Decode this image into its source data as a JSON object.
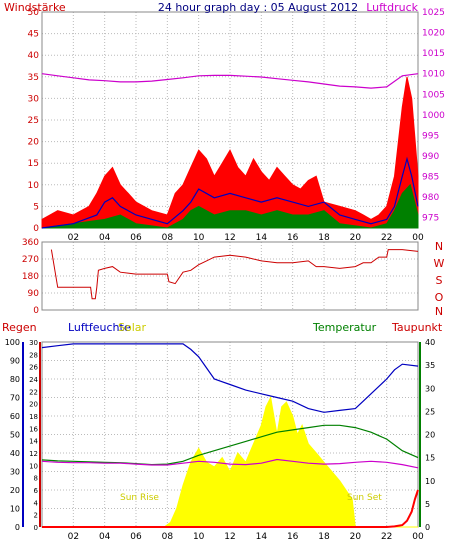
{
  "chart_data": [
    {
      "type": "line",
      "title": "24 hour graph day : 05 August 2012",
      "left_axis_label": "Windstärke",
      "right_axis_label": "Luftdruck",
      "x_ticks": [
        "02",
        "04",
        "06",
        "08",
        "10",
        "12",
        "14",
        "16",
        "18",
        "20",
        "22",
        "00"
      ],
      "x_range": [
        0,
        24
      ],
      "ylim_left": [
        0,
        50
      ],
      "yticks_left": [
        0,
        5,
        10,
        15,
        20,
        25,
        30,
        35,
        40,
        45,
        50
      ],
      "ylim_right": [
        972.5,
        1025
      ],
      "yticks_right": [
        975,
        980,
        985,
        990,
        995,
        1000,
        1005,
        1010,
        1015,
        1020,
        1025
      ],
      "colors": {
        "gust": "#ff0000",
        "wind": "#0000c0",
        "wind_avg": "#008000",
        "pressure": "#cc00cc",
        "left_axis": "#cc0000",
        "right_axis": "#cc00cc",
        "title": "#000080"
      },
      "series": [
        {
          "key": "pressure",
          "axis": "right",
          "x": [
            0,
            1,
            2,
            3,
            4,
            5,
            6,
            7,
            8,
            9,
            10,
            11,
            12,
            13,
            14,
            15,
            16,
            17,
            18,
            19,
            20,
            21,
            22,
            23,
            24
          ],
          "y": [
            1010,
            1009.5,
            1009,
            1008.5,
            1008.3,
            1008,
            1008,
            1008.2,
            1008.6,
            1009,
            1009.5,
            1009.6,
            1009.6,
            1009.4,
            1009.2,
            1008.8,
            1008.4,
            1008,
            1007.5,
            1007,
            1006.8,
            1006.5,
            1006.8,
            1009.5,
            1010
          ]
        },
        {
          "key": "gust",
          "axis": "left",
          "x": [
            0,
            1,
            2,
            3,
            3.5,
            4,
            4.5,
            5,
            5.5,
            6,
            7,
            8,
            8.5,
            9,
            9.5,
            10,
            10.5,
            11,
            11.5,
            12,
            12.5,
            13,
            13.5,
            14,
            14.5,
            15,
            15.5,
            16,
            16.5,
            17,
            17.5,
            18,
            19,
            20,
            20.5,
            21,
            21.5,
            22,
            22.5,
            23,
            23.3,
            23.6,
            24
          ],
          "y": [
            2,
            4,
            3,
            5,
            8,
            12,
            14,
            10,
            8,
            6,
            4,
            3,
            8,
            10,
            14,
            18,
            16,
            12,
            15,
            18,
            14,
            12,
            16,
            13,
            11,
            14,
            12,
            10,
            9,
            11,
            12,
            6,
            5,
            4,
            3,
            2,
            3,
            5,
            12,
            28,
            35,
            30,
            12
          ]
        },
        {
          "key": "wind",
          "axis": "left",
          "x": [
            0,
            2,
            3.5,
            4,
            4.5,
            5,
            6,
            8,
            9,
            9.5,
            10,
            11,
            12,
            13,
            14,
            15,
            16,
            17,
            18,
            19,
            20,
            21,
            22,
            22.5,
            23,
            23.3,
            23.6,
            24
          ],
          "y": [
            0,
            1,
            3,
            6,
            7,
            5,
            3,
            1,
            4,
            6,
            9,
            7,
            8,
            7,
            6,
            7,
            6,
            5,
            6,
            3,
            2,
            1,
            2,
            5,
            12,
            16,
            12,
            5
          ]
        },
        {
          "key": "wind_avg",
          "axis": "left",
          "x": [
            0,
            4,
            5,
            6,
            8,
            9,
            9.5,
            10,
            11,
            12,
            13,
            14,
            15,
            16,
            17,
            18,
            19,
            21,
            22,
            22.5,
            23,
            23.5,
            24
          ],
          "y": [
            0,
            2,
            3,
            1,
            0,
            2,
            4,
            5,
            3,
            4,
            4,
            3,
            4,
            3,
            3,
            4,
            1,
            0,
            1,
            4,
            8,
            10,
            3
          ]
        }
      ]
    },
    {
      "type": "scatter",
      "right_labels": [
        "N",
        "W",
        "S",
        "O",
        "N"
      ],
      "x_range": [
        0,
        24
      ],
      "ylim": [
        0,
        360
      ],
      "yticks": [
        0,
        90,
        180,
        270,
        360
      ],
      "colors": {
        "direction": "#cc0000",
        "labels": "#cc0000"
      },
      "series": [
        {
          "key": "direction",
          "x": [
            0.6,
            1,
            2,
            3,
            3.1,
            3.2,
            3.4,
            3.5,
            3.6,
            4,
            4.5,
            5,
            6,
            7,
            8,
            8.1,
            8.5,
            9,
            9.5,
            10,
            10.5,
            11,
            12,
            13,
            14,
            15,
            16,
            17,
            17.5,
            18,
            19,
            20,
            20.5,
            21,
            21.5,
            22,
            22.1,
            22.5,
            23,
            24
          ],
          "y": [
            320,
            120,
            120,
            120,
            120,
            60,
            60,
            120,
            210,
            220,
            230,
            200,
            190,
            190,
            190,
            150,
            140,
            200,
            210,
            240,
            260,
            280,
            290,
            280,
            260,
            250,
            250,
            260,
            230,
            230,
            220,
            230,
            250,
            250,
            280,
            280,
            320,
            320,
            320,
            310
          ]
        }
      ]
    },
    {
      "type": "line",
      "left_axis_label": "Regen",
      "labels": {
        "humidity": "Luftfeuchte",
        "solar": "Solar",
        "temperature": "Temperatur",
        "dewpoint": "Taupunkt",
        "sunrise": "Sun Rise",
        "sunset": "Sun Set"
      },
      "x_ticks": [
        "02",
        "04",
        "06",
        "08",
        "10",
        "12",
        "14",
        "16",
        "18",
        "20",
        "22",
        "00"
      ],
      "x_range": [
        0,
        24
      ],
      "yticks_humidity": [
        0,
        10,
        20,
        30,
        40,
        50,
        60,
        70,
        80,
        90,
        100
      ],
      "yticks_rain": [
        0,
        2,
        4,
        6,
        8,
        10,
        12,
        14,
        16,
        18,
        20,
        22,
        24,
        26,
        28,
        30
      ],
      "yticks_temperature": [
        0,
        5,
        10,
        15,
        20,
        25,
        30,
        35,
        40
      ],
      "ylim_humidity": [
        0,
        100
      ],
      "ylim_temperature": [
        0,
        40
      ],
      "colors": {
        "humidity": "#0000c0",
        "solar": "#ffff00",
        "temperature": "#008000",
        "dewpoint": "#cc00cc",
        "rain": "#ff0000",
        "rain_label": "#cc0000",
        "solar_label": "#cccc00",
        "humidity_axis": "#0000c0",
        "rain_axis": "#cc0000",
        "temperature_axis": "#008000"
      },
      "series": [
        {
          "key": "humidity",
          "axis": "humidity",
          "x": [
            0,
            1,
            2,
            3,
            4,
            5,
            6,
            7,
            8,
            9,
            9.5,
            10,
            10.5,
            11,
            12,
            13,
            14,
            15,
            16,
            17,
            18,
            19,
            20,
            20.5,
            21,
            22,
            22.5,
            23,
            24
          ],
          "y": [
            97,
            98,
            99,
            99,
            99,
            99,
            99,
            99,
            99,
            99,
            96,
            92,
            86,
            80,
            77,
            74,
            72,
            70,
            68,
            64,
            62,
            63,
            64,
            68,
            72,
            80,
            85,
            88,
            87
          ]
        },
        {
          "key": "temperature",
          "axis": "temperature",
          "x": [
            0,
            1,
            2,
            3,
            4,
            5,
            6,
            7,
            8,
            9,
            10,
            11,
            12,
            13,
            14,
            15,
            16,
            17,
            18,
            19,
            20,
            21,
            22,
            23,
            24
          ],
          "y": [
            14.5,
            14.3,
            14.2,
            14.1,
            14,
            13.9,
            13.7,
            13.5,
            13.6,
            14.2,
            15.5,
            16.5,
            17.5,
            18.5,
            19.5,
            20.5,
            21,
            21.5,
            22,
            22,
            21.5,
            20.5,
            19,
            16.5,
            15
          ]
        },
        {
          "key": "dewpoint",
          "axis": "temperature",
          "x": [
            0,
            1,
            2,
            3,
            4,
            5,
            6,
            7,
            8,
            9,
            10,
            11,
            12,
            13,
            14,
            15,
            16,
            17,
            18,
            19,
            20,
            21,
            22,
            23,
            24
          ],
          "y": [
            14.2,
            14,
            13.9,
            13.9,
            13.8,
            13.8,
            13.6,
            13.4,
            13.4,
            13.8,
            14.2,
            14,
            13.6,
            13.5,
            13.8,
            14.6,
            14.2,
            13.8,
            13.6,
            13.7,
            14,
            14.2,
            14,
            13.5,
            12.8
          ]
        },
        {
          "key": "solar",
          "axis": "temperature",
          "x": [
            0,
            7.8,
            8.2,
            8.6,
            9,
            9.5,
            10,
            10.5,
            11,
            11.5,
            12,
            12.5,
            13,
            13.5,
            14,
            14.3,
            14.6,
            15,
            15.3,
            15.6,
            16,
            16.3,
            16.6,
            17,
            17.5,
            18,
            19,
            19.8,
            20,
            24
          ],
          "y": [
            0,
            0,
            1,
            4,
            9,
            14,
            17,
            14,
            13,
            15,
            12,
            16,
            14,
            18,
            22,
            26,
            28,
            20,
            26,
            27,
            24,
            20,
            22,
            18,
            16,
            14,
            10,
            6,
            0,
            0
          ]
        },
        {
          "key": "rain",
          "axis": "rain",
          "x": [
            0,
            22,
            22.5,
            23,
            23.3,
            23.6,
            23.8,
            24
          ],
          "y": [
            0,
            0,
            0.1,
            0.3,
            1,
            2.5,
            4.5,
            6
          ]
        }
      ]
    }
  ]
}
